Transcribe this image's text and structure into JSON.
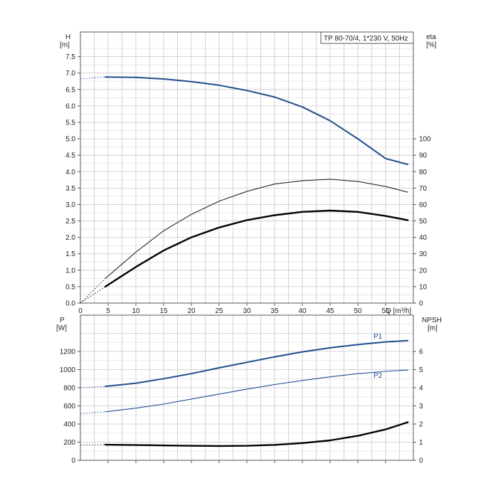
{
  "chart_data": [
    {
      "type": "line",
      "title": "TP 80-70/4, 1*230 V, 50Hz",
      "xlabel": "Q [m³/h]",
      "xlim": [
        0,
        60
      ],
      "xticks": [
        "0",
        "5",
        "10",
        "15",
        "20",
        "25",
        "30",
        "35",
        "40",
        "45",
        "50",
        "55"
      ],
      "left_axis": {
        "label_line1": "H",
        "label_line2": "[m]",
        "lim": [
          0,
          8.25
        ],
        "ticks": [
          "0.0",
          "0.5",
          "1.0",
          "1.5",
          "2.0",
          "2.5",
          "3.0",
          "3.5",
          "4.0",
          "4.5",
          "5.0",
          "5.5",
          "6.0",
          "6.5",
          "7.0",
          "7.5"
        ]
      },
      "right_axis": {
        "label_line1": "eta",
        "label_line2": "[%]",
        "lim": [
          0,
          165
        ],
        "ticks": [
          "0",
          "10",
          "20",
          "30",
          "40",
          "50",
          "60",
          "70",
          "80",
          "90",
          "100"
        ]
      },
      "grid": true,
      "series": [
        {
          "axis": "left",
          "color": "#1f4e8c",
          "points": [
            [
              0,
              6.82
            ],
            [
              2,
              6.85
            ],
            [
              4.5,
              6.88
            ],
            [
              10,
              6.87
            ],
            [
              15,
              6.82
            ],
            [
              20,
              6.74
            ],
            [
              25,
              6.63
            ],
            [
              30,
              6.47
            ],
            [
              35,
              6.27
            ],
            [
              40,
              5.97
            ],
            [
              45,
              5.55
            ],
            [
              50,
              5.0
            ],
            [
              55,
              4.4
            ],
            [
              59,
              4.22
            ]
          ]
        },
        {
          "axis": "right",
          "color": "#111111",
          "points": [
            [
              0,
              0
            ],
            [
              4.5,
              15
            ],
            [
              10,
              31
            ],
            [
              15,
              44
            ],
            [
              20,
              54
            ],
            [
              25,
              62
            ],
            [
              30,
              68
            ],
            [
              35,
              72.5
            ],
            [
              40,
              74.5
            ],
            [
              45,
              75.4
            ],
            [
              50,
              74
            ],
            [
              55,
              71
            ],
            [
              59,
              67.5
            ]
          ]
        },
        {
          "axis": "right",
          "color": "#000000",
          "points": [
            [
              0,
              0
            ],
            [
              4.5,
              10
            ],
            [
              10,
              22
            ],
            [
              15,
              32
            ],
            [
              20,
              40
            ],
            [
              25,
              46
            ],
            [
              30,
              50.5
            ],
            [
              35,
              53.5
            ],
            [
              40,
              55.5
            ],
            [
              45,
              56.3
            ],
            [
              50,
              55.5
            ],
            [
              55,
              53
            ],
            [
              59,
              50.5
            ]
          ]
        }
      ]
    },
    {
      "type": "line",
      "xlim": [
        0,
        60
      ],
      "left_axis": {
        "label_line1": "P",
        "label_line2": "[W]",
        "lim": [
          0,
          1600
        ],
        "ticks": [
          "0",
          "200",
          "400",
          "600",
          "800",
          "1000",
          "1200"
        ]
      },
      "right_axis": {
        "label_line1": "NPSH",
        "label_line2": "[m]",
        "lim": [
          0,
          8
        ],
        "ticks": [
          "0",
          "1",
          "2",
          "3",
          "4",
          "5",
          "6"
        ]
      },
      "grid": true,
      "series": [
        {
          "name": "P1",
          "axis": "left",
          "color": "#1f4e8c",
          "points": [
            [
              0,
              800
            ],
            [
              4.5,
              815
            ],
            [
              10,
              850
            ],
            [
              15,
              900
            ],
            [
              20,
              955
            ],
            [
              25,
              1020
            ],
            [
              30,
              1080
            ],
            [
              35,
              1140
            ],
            [
              40,
              1195
            ],
            [
              45,
              1240
            ],
            [
              50,
              1275
            ],
            [
              55,
              1305
            ],
            [
              59,
              1320
            ]
          ]
        },
        {
          "name": "P2",
          "axis": "left",
          "color": "#1f4e8c",
          "points": [
            [
              0,
              515
            ],
            [
              4.5,
              535
            ],
            [
              10,
              575
            ],
            [
              15,
              620
            ],
            [
              20,
              675
            ],
            [
              25,
              730
            ],
            [
              30,
              785
            ],
            [
              35,
              835
            ],
            [
              40,
              880
            ],
            [
              45,
              920
            ],
            [
              50,
              955
            ],
            [
              55,
              980
            ],
            [
              59,
              995
            ]
          ]
        },
        {
          "axis": "right",
          "color": "#000000",
          "points": [
            [
              0,
              0.85
            ],
            [
              4.5,
              0.86
            ],
            [
              10,
              0.84
            ],
            [
              15,
              0.82
            ],
            [
              20,
              0.8
            ],
            [
              25,
              0.79
            ],
            [
              30,
              0.8
            ],
            [
              35,
              0.85
            ],
            [
              40,
              0.95
            ],
            [
              45,
              1.1
            ],
            [
              50,
              1.35
            ],
            [
              55,
              1.7
            ],
            [
              59,
              2.1
            ]
          ]
        }
      ]
    }
  ]
}
